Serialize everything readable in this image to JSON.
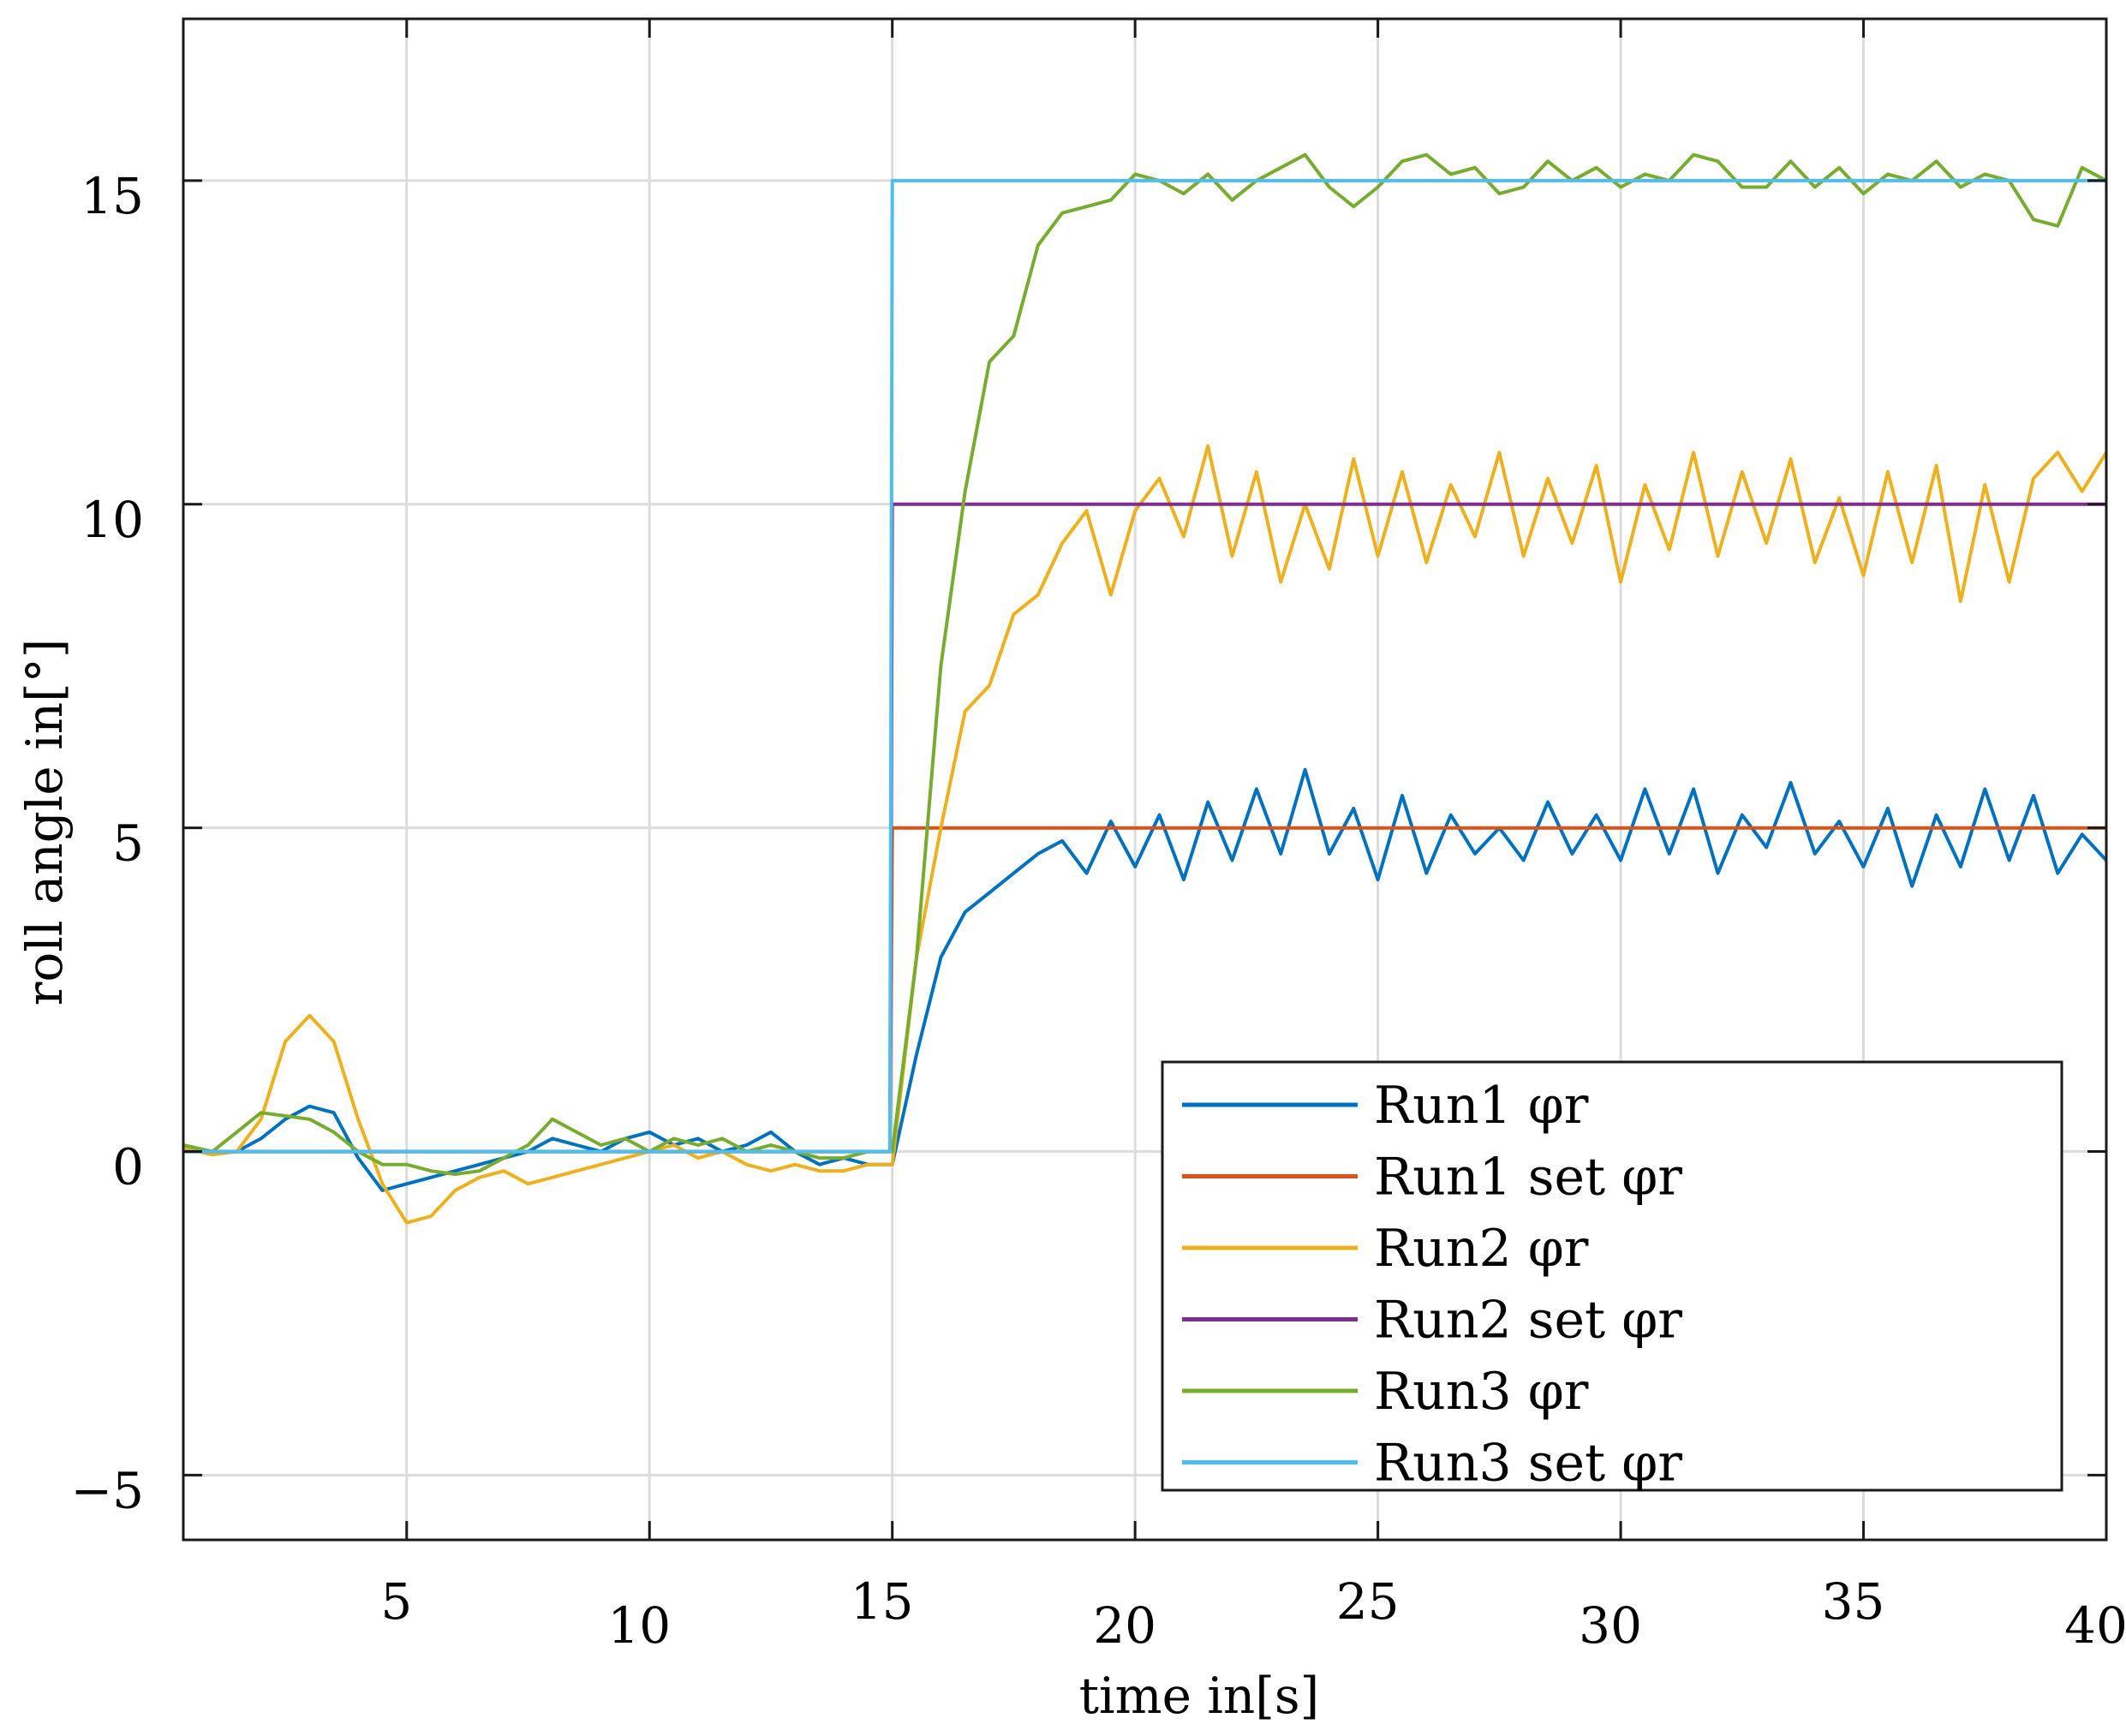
{
  "chart_data": {
    "type": "line",
    "xlabel": "time in[s]",
    "ylabel": "roll angle in[°]",
    "xlim": [
      0.4,
      40
    ],
    "ylim": [
      -6,
      17.5
    ],
    "xticks": [
      5,
      10,
      15,
      20,
      25,
      30,
      35,
      40
    ],
    "xtick_labels": [
      "5",
      "10",
      "15",
      "20",
      "25",
      "30",
      "35",
      "40"
    ],
    "yticks": [
      -5,
      0,
      5,
      10,
      15
    ],
    "ytick_labels": [
      "−5",
      "0",
      "5",
      "10",
      "15"
    ],
    "grid": true,
    "legend_position": "bottom-right",
    "series": [
      {
        "name": "Run1 φr",
        "color": "#0072BD",
        "x": [
          0.4,
          1,
          1.5,
          2,
          2.5,
          3,
          3.5,
          4,
          4.5,
          5,
          5.5,
          6,
          6.5,
          7,
          7.5,
          8,
          8.5,
          9,
          9.5,
          10,
          10.5,
          11,
          11.5,
          12,
          12.5,
          13,
          13.5,
          14,
          14.5,
          15,
          15.5,
          16,
          16.5,
          17,
          17.5,
          18,
          18.5,
          19,
          19.5,
          20,
          20.5,
          21,
          21.5,
          22,
          22.5,
          23,
          23.5,
          24,
          24.5,
          25,
          25.5,
          26,
          26.5,
          27,
          27.5,
          28,
          28.5,
          29,
          29.5,
          30,
          30.5,
          31,
          31.5,
          32,
          32.5,
          33,
          33.5,
          34,
          34.5,
          35,
          35.5,
          36,
          36.5,
          37,
          37.5,
          38,
          38.5,
          39,
          39.5,
          40
        ],
        "y": [
          0.05,
          0.0,
          0.0,
          0.2,
          0.5,
          0.7,
          0.6,
          -0.1,
          -0.6,
          -0.5,
          -0.4,
          -0.3,
          -0.2,
          -0.1,
          0.0,
          0.2,
          0.1,
          0.0,
          0.2,
          0.3,
          0.1,
          0.2,
          0.0,
          0.1,
          0.3,
          0.0,
          -0.2,
          -0.1,
          -0.2,
          -0.2,
          1.5,
          3.0,
          3.7,
          4.0,
          4.3,
          4.6,
          4.8,
          4.3,
          5.1,
          4.4,
          5.2,
          4.2,
          5.4,
          4.5,
          5.6,
          4.6,
          5.9,
          4.6,
          5.3,
          4.2,
          5.5,
          4.3,
          5.2,
          4.6,
          5.0,
          4.5,
          5.4,
          4.6,
          5.2,
          4.5,
          5.6,
          4.6,
          5.6,
          4.3,
          5.2,
          4.7,
          5.7,
          4.6,
          5.1,
          4.4,
          5.3,
          4.1,
          5.2,
          4.4,
          5.6,
          4.5,
          5.5,
          4.3,
          4.9,
          4.5
        ]
      },
      {
        "name": "Run1 set φr",
        "color": "#D95319",
        "x": [
          0.4,
          14.95,
          15.0,
          40
        ],
        "y": [
          0,
          0,
          5,
          5
        ]
      },
      {
        "name": "Run2 φr",
        "color": "#EDB120",
        "x": [
          0.4,
          1,
          1.5,
          2,
          2.5,
          3,
          3.5,
          4,
          4.5,
          5,
          5.5,
          6,
          6.5,
          7,
          7.5,
          8,
          8.5,
          9,
          9.5,
          10,
          10.5,
          11,
          11.5,
          12,
          12.5,
          13,
          13.5,
          14,
          14.5,
          15,
          15.5,
          16,
          16.5,
          17,
          17.5,
          18,
          18.5,
          19,
          19.5,
          20,
          20.5,
          21,
          21.5,
          22,
          22.5,
          23,
          23.5,
          24,
          24.5,
          25,
          25.5,
          26,
          26.5,
          27,
          27.5,
          28,
          28.5,
          29,
          29.5,
          30,
          30.5,
          31,
          31.5,
          32,
          32.5,
          33,
          33.5,
          34,
          34.5,
          35,
          35.5,
          36,
          36.5,
          37,
          37.5,
          38,
          38.5,
          39,
          39.5,
          40
        ],
        "y": [
          0.05,
          -0.05,
          0.0,
          0.5,
          1.7,
          2.1,
          1.7,
          0.5,
          -0.5,
          -1.1,
          -1.0,
          -0.6,
          -0.4,
          -0.3,
          -0.5,
          -0.4,
          -0.3,
          -0.2,
          -0.1,
          0.0,
          0.1,
          -0.1,
          0.0,
          -0.2,
          -0.3,
          -0.2,
          -0.3,
          -0.3,
          -0.2,
          -0.2,
          3.0,
          5.0,
          6.8,
          7.2,
          8.3,
          8.6,
          9.4,
          9.9,
          8.6,
          9.9,
          10.4,
          9.5,
          10.9,
          9.2,
          10.5,
          8.8,
          10.0,
          9.0,
          10.7,
          9.2,
          10.5,
          9.1,
          10.3,
          9.5,
          10.8,
          9.2,
          10.4,
          9.4,
          10.6,
          8.8,
          10.3,
          9.3,
          10.8,
          9.2,
          10.5,
          9.4,
          10.7,
          9.1,
          10.1,
          8.9,
          10.5,
          9.1,
          10.6,
          8.5,
          10.3,
          8.8,
          10.4,
          10.8,
          10.2,
          10.8
        ]
      },
      {
        "name": "Run2 set φr",
        "color": "#7E2F8E",
        "x": [
          0.4,
          14.95,
          15.0,
          40
        ],
        "y": [
          0,
          0,
          10,
          10
        ]
      },
      {
        "name": "Run3 φr",
        "color": "#77AC30",
        "x": [
          0.4,
          1,
          1.5,
          2,
          2.5,
          3,
          3.5,
          4,
          4.5,
          5,
          5.5,
          6,
          6.5,
          7,
          7.5,
          8,
          8.5,
          9,
          9.5,
          10,
          10.5,
          11,
          11.5,
          12,
          12.5,
          13,
          13.5,
          14,
          14.5,
          15,
          15.5,
          16,
          16.5,
          17,
          17.5,
          18,
          18.5,
          19,
          19.5,
          20,
          20.5,
          21,
          21.5,
          22,
          22.5,
          23,
          23.5,
          24,
          24.5,
          25,
          25.5,
          26,
          26.5,
          27,
          27.5,
          28,
          28.5,
          29,
          29.5,
          30,
          30.5,
          31,
          31.5,
          32,
          32.5,
          33,
          33.5,
          34,
          34.5,
          35,
          35.5,
          36,
          36.5,
          37,
          37.5,
          38,
          38.5,
          39,
          39.5,
          40
        ],
        "y": [
          0.1,
          0.0,
          0.3,
          0.6,
          0.55,
          0.5,
          0.3,
          0.0,
          -0.2,
          -0.2,
          -0.3,
          -0.35,
          -0.3,
          -0.1,
          0.1,
          0.5,
          0.3,
          0.1,
          0.2,
          0.0,
          0.2,
          0.1,
          0.2,
          0.0,
          0.1,
          0.0,
          -0.1,
          -0.1,
          0.0,
          0.0,
          3.0,
          7.5,
          10.2,
          12.2,
          12.6,
          14.0,
          14.5,
          14.6,
          14.7,
          15.1,
          15.0,
          14.8,
          15.1,
          14.7,
          15.0,
          15.2,
          15.4,
          14.9,
          14.6,
          14.9,
          15.3,
          15.4,
          15.1,
          15.2,
          14.8,
          14.9,
          15.3,
          15.0,
          15.2,
          14.9,
          15.1,
          15.0,
          15.4,
          15.3,
          14.9,
          14.9,
          15.3,
          14.9,
          15.2,
          14.8,
          15.1,
          15.0,
          15.3,
          14.9,
          15.1,
          15.0,
          14.4,
          14.3,
          15.2,
          15.0
        ]
      },
      {
        "name": "Run3 set φr",
        "color": "#4DBEEE",
        "x": [
          0.4,
          14.95,
          15.0,
          40
        ],
        "y": [
          0,
          0,
          15,
          15
        ]
      }
    ]
  }
}
